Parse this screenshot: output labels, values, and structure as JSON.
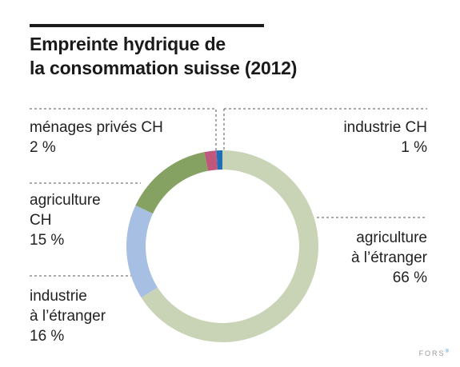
{
  "title_line1": "Empreinte hydrique de",
  "title_line2": "la consommation suisse (2012)",
  "brand": "FORS",
  "brand_mark": "®",
  "chart_data": {
    "type": "pie",
    "donut": true,
    "title": "Empreinte hydrique de la consommation suisse (2012)",
    "unit": "%",
    "slices": [
      {
        "label": "agriculture à l’étranger",
        "value": 66,
        "color": "#c8d4b5"
      },
      {
        "label": "industrie à l’étranger",
        "value": 16,
        "color": "#a6bfe3"
      },
      {
        "label": "agriculture CH",
        "value": 15,
        "color": "#86a262"
      },
      {
        "label": "ménages privés CH",
        "value": 2,
        "color": "#c0587e"
      },
      {
        "label": "industrie CH",
        "value": 1,
        "color": "#1d6fb8"
      }
    ]
  },
  "labels": {
    "menages": {
      "line1": "ménages privés CH",
      "pct": "2 %"
    },
    "industrie_ch": {
      "line1": "industrie CH",
      "pct": "1 %"
    },
    "agri_ch": {
      "line1": "agriculture",
      "line2": "CH",
      "pct": "15 %"
    },
    "agri_etr": {
      "line1": "agriculture",
      "line2": "à l’étranger",
      "pct": "66 %"
    },
    "ind_etr": {
      "line1": "industrie",
      "line2": "à l’étranger",
      "pct": "16 %"
    }
  }
}
